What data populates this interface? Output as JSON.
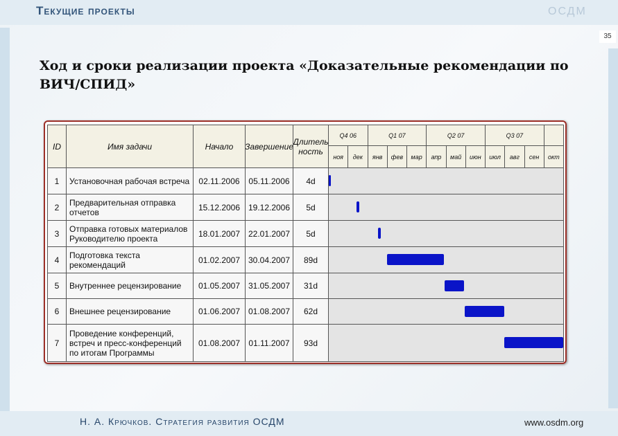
{
  "header": {
    "title": "Текущие проекты",
    "logo": "ОСДМ"
  },
  "slide_number": "35",
  "title": "Ход и сроки реализации проекта «Доказательные рекомендации по ВИЧ/СПИД»",
  "table": {
    "columns": [
      "ID",
      "Имя задачи",
      "Начало",
      "Завершение",
      "Длитель\nность"
    ],
    "quarters": [
      "Q4 06",
      "Q1 07",
      "Q2 07",
      "Q3 07"
    ],
    "months": [
      "ноя",
      "дек",
      "янв",
      "фев",
      "мар",
      "апр",
      "май",
      "июн",
      "июл",
      "авг",
      "сен",
      "окт"
    ],
    "rows": [
      [
        "1",
        "Установочная рабочая встреча",
        "02.11.2006",
        "05.11.2006",
        "4d"
      ],
      [
        "2",
        "Предварительная отправка отчетов",
        "15.12.2006",
        "19.12.2006",
        "5d"
      ],
      [
        "3",
        "Отправка готовых материалов Руководителю проекта",
        "18.01.2007",
        "22.01.2007",
        "5d"
      ],
      [
        "4",
        "Подготовка текста рекомендаций",
        "01.02.2007",
        "30.04.2007",
        "89d"
      ],
      [
        "5",
        "Внутреннее рецензирование",
        "01.05.2007",
        "31.05.2007",
        "31d"
      ],
      [
        "6",
        "Внешнее рецензирование",
        "01.06.2007",
        "01.08.2007",
        "62d"
      ],
      [
        "7",
        "Проведение конференций, встреч и пресс-конференций по итогам Программы",
        "01.08.2007",
        "01.11.2007",
        "93d"
      ]
    ]
  },
  "footer": {
    "author": "Н. А. Крючков. Стратегия развития ОСДМ",
    "url": "www.osdm.org"
  }
}
